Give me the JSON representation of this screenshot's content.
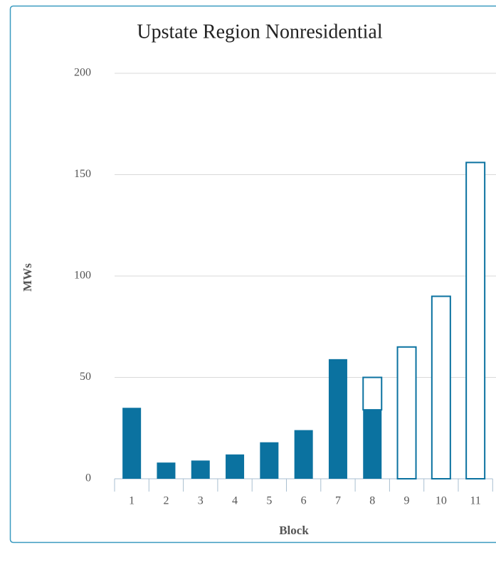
{
  "chart_data": {
    "type": "stacked_bar",
    "title": "Upstate Region Nonresidential",
    "x_label": "Block",
    "y_label": "MWs",
    "categories": [
      "1",
      "2",
      "3",
      "4",
      "5",
      "6",
      "7",
      "8",
      "9",
      "10",
      "11"
    ],
    "series": [
      {
        "color": "#0b72a0",
        "values": [
          35,
          8,
          9,
          12,
          18,
          24,
          59,
          34,
          null,
          null,
          null
        ]
      },
      {
        "color": "#ffffff",
        "values": [
          null,
          null,
          null,
          null,
          null,
          null,
          null,
          16,
          65,
          90,
          156
        ]
      }
    ],
    "ylim": [
      0,
      200
    ],
    "yticks": [
      0,
      50,
      100,
      150,
      200
    ],
    "grid": true
  }
}
